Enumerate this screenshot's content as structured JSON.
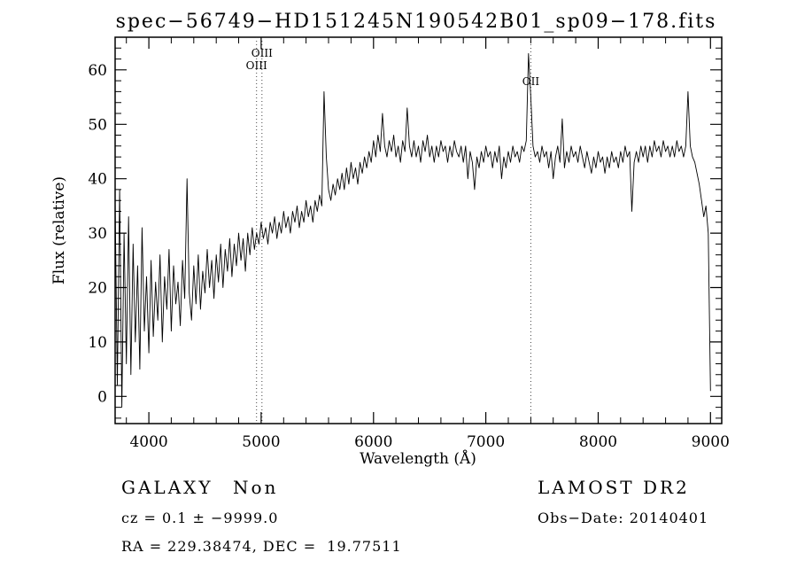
{
  "chart_data": {
    "type": "line",
    "title": "spec−56749−HD151245N190542B01_sp09−178.fits",
    "xlabel": "Wavelength (Å)",
    "ylabel": "Flux (relative)",
    "xlim": [
      3700,
      9100
    ],
    "ylim": [
      -5,
      66
    ],
    "x_ticks": [
      4000,
      5000,
      6000,
      7000,
      8000,
      9000
    ],
    "y_ticks": [
      0,
      10,
      20,
      30,
      40,
      50,
      60
    ],
    "x_minor_step": 200,
    "y_minor_step": 2,
    "grid": false,
    "line_color": "#000000",
    "marker_line_color": "#444444",
    "x_start": 3700,
    "x_step": 20,
    "flux": [
      36,
      2,
      38,
      -2,
      30,
      6,
      33,
      4,
      28,
      10,
      24,
      5,
      31,
      12,
      22,
      8,
      25,
      11,
      21,
      14,
      26,
      10,
      22,
      16,
      27,
      12,
      24,
      17,
      21,
      13,
      25,
      18,
      40,
      19,
      14,
      24,
      17,
      26,
      16,
      23,
      19,
      27,
      20,
      25,
      18,
      26,
      21,
      28,
      20,
      27,
      23,
      29,
      22,
      28,
      24,
      30,
      25,
      29,
      23,
      30,
      26,
      31,
      27,
      30,
      28,
      32,
      29,
      31,
      28,
      32,
      30,
      33,
      29,
      32,
      30,
      34,
      31,
      33,
      30,
      34,
      32,
      35,
      31,
      34,
      32,
      36,
      33,
      35,
      32,
      36,
      34,
      37,
      35,
      56,
      44,
      38,
      36,
      39,
      37,
      40,
      38,
      41,
      38,
      42,
      39,
      43,
      40,
      42,
      39,
      43,
      41,
      44,
      42,
      45,
      43,
      47,
      44,
      48,
      45,
      52,
      46,
      44,
      47,
      45,
      48,
      44,
      46,
      43,
      47,
      45,
      53,
      46,
      44,
      47,
      44,
      46,
      43,
      47,
      45,
      48,
      44,
      46,
      43,
      46,
      44,
      47,
      45,
      46,
      43,
      46,
      44,
      47,
      45,
      44,
      46,
      43,
      46,
      40,
      45,
      43,
      38,
      44,
      42,
      45,
      43,
      46,
      44,
      45,
      42,
      45,
      43,
      46,
      40,
      44,
      42,
      45,
      43,
      46,
      44,
      45,
      43,
      46,
      45,
      47,
      63,
      55,
      46,
      44,
      45,
      43,
      46,
      44,
      45,
      42,
      45,
      40,
      44,
      46,
      43,
      51,
      42,
      45,
      43,
      46,
      44,
      45,
      43,
      46,
      44,
      42,
      45,
      43,
      41,
      44,
      42,
      45,
      43,
      44,
      41,
      44,
      42,
      45,
      43,
      44,
      42,
      45,
      43,
      46,
      44,
      45,
      34,
      43,
      45,
      43,
      46,
      44,
      46,
      43,
      46,
      44,
      47,
      45,
      46,
      44,
      47,
      45,
      46,
      44,
      46,
      44,
      47,
      45,
      46,
      44,
      46,
      56,
      46,
      44,
      43,
      41,
      39,
      36,
      33,
      35,
      30,
      1
    ],
    "emission_lines": [
      {
        "label": "OIII",
        "wavelength": 5007,
        "label_level": 0
      },
      {
        "label": "OIII",
        "wavelength": 4959,
        "label_level": 1
      },
      {
        "label": "OII",
        "wavelength": 7400,
        "label_level": 2
      }
    ]
  },
  "annotations": {
    "class_label": "GALAXY",
    "subclass_label": "Non",
    "survey": "LAMOST DR2",
    "cz_text": "cz = 0.1 ± −9999.0",
    "obs_date_text": "Obs−Date: 20140401",
    "ra_dec_text": "RA = 229.38474, DEC =  19.77511"
  }
}
